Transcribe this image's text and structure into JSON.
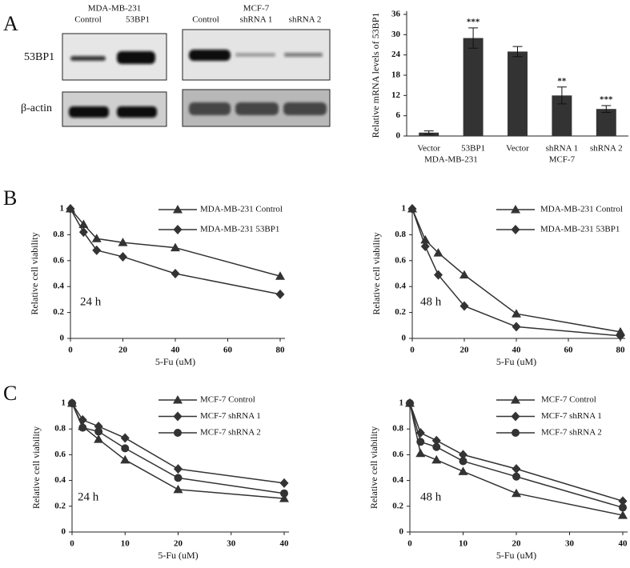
{
  "panel_labels": [
    "A",
    "B",
    "C"
  ],
  "blot": {
    "groups": [
      {
        "name": "MDA-MB-231",
        "lanes": [
          "Control",
          "53BP1"
        ]
      },
      {
        "name": "MCF-7",
        "lanes": [
          "Control",
          "shRNA 1",
          "shRNA  2"
        ]
      }
    ],
    "rows": [
      "53BP1",
      "β-actin"
    ]
  },
  "chart_data": [
    {
      "type": "bar",
      "ylabel": "Relative mRNA levels of 53BP1",
      "categories": [
        "Vector",
        "53BP1",
        "Vector",
        "shRNA 1",
        "shRNA 2"
      ],
      "group_labels": [
        "MDA-MB-231",
        "MCF-7"
      ],
      "values": [
        1,
        29,
        25,
        12,
        8
      ],
      "errors": [
        0.5,
        3,
        1.5,
        2.5,
        1
      ],
      "significance": [
        null,
        "***",
        null,
        "**",
        "***"
      ],
      "color": "#333333",
      "ylim": [
        0,
        36
      ],
      "yticks": [
        0,
        6,
        12,
        18,
        24,
        30,
        36
      ]
    },
    {
      "type": "line",
      "annotation": "24 h",
      "xlabel": "5-Fu (uM)",
      "ylabel": "Relative cell viability",
      "x": [
        0,
        5,
        10,
        20,
        40,
        80
      ],
      "xlim": [
        0,
        80
      ],
      "xticks": [
        0,
        20,
        40,
        60,
        80
      ],
      "ylim": [
        0,
        1
      ],
      "yticks": [
        0,
        0.2,
        0.4,
        0.6,
        0.8,
        1
      ],
      "series": [
        {
          "name": "MDA-MB-231 Control",
          "color": "#333333",
          "marker": "triangle",
          "values": [
            1,
            0.88,
            0.77,
            0.74,
            0.7,
            0.48
          ]
        },
        {
          "name": "MDA-MB-231 53BP1",
          "color": "#333333",
          "marker": "diamond",
          "values": [
            1,
            0.82,
            0.68,
            0.63,
            0.5,
            0.34
          ]
        }
      ]
    },
    {
      "type": "line",
      "annotation": "48 h",
      "xlabel": "5-Fu (uM)",
      "ylabel": "Relative cell viability",
      "x": [
        0,
        5,
        10,
        20,
        40,
        80
      ],
      "xlim": [
        0,
        80
      ],
      "xticks": [
        0,
        20,
        40,
        60,
        80
      ],
      "ylim": [
        0,
        1
      ],
      "yticks": [
        0,
        0.2,
        0.4,
        0.6,
        0.8,
        1
      ],
      "series": [
        {
          "name": "MDA-MB-231 Control",
          "color": "#333333",
          "marker": "triangle",
          "values": [
            1,
            0.76,
            0.66,
            0.49,
            0.19,
            0.05
          ]
        },
        {
          "name": "MDA-MB-231 53BP1",
          "color": "#333333",
          "marker": "diamond",
          "values": [
            1,
            0.71,
            0.49,
            0.25,
            0.09,
            0.02
          ]
        }
      ]
    },
    {
      "type": "line",
      "annotation": "24 h",
      "xlabel": "5-Fu (uM)",
      "ylabel": "Relative cell viability",
      "x": [
        0,
        2,
        5,
        10,
        20,
        40
      ],
      "xlim": [
        0,
        40
      ],
      "xticks": [
        0,
        10,
        20,
        30,
        40
      ],
      "ylim": [
        0,
        1
      ],
      "yticks": [
        0,
        0.2,
        0.4,
        0.6,
        0.8,
        1
      ],
      "series": [
        {
          "name": "MCF-7 Control",
          "color": "#333333",
          "marker": "triangle",
          "values": [
            1,
            0.82,
            0.72,
            0.56,
            0.33,
            0.26
          ]
        },
        {
          "name": "MCF-7 shRNA 1",
          "color": "#333333",
          "marker": "diamond",
          "values": [
            1,
            0.87,
            0.82,
            0.73,
            0.49,
            0.38
          ]
        },
        {
          "name": "MCF-7 shRNA 2",
          "color": "#333333",
          "marker": "circle",
          "values": [
            1,
            0.81,
            0.78,
            0.65,
            0.42,
            0.3
          ]
        }
      ]
    },
    {
      "type": "line",
      "annotation": "48 h",
      "xlabel": "5-Fu (uM)",
      "ylabel": "Relative cell viability",
      "x": [
        0,
        2,
        5,
        10,
        20,
        40
      ],
      "xlim": [
        0,
        40
      ],
      "xticks": [
        0,
        10,
        20,
        30,
        40
      ],
      "ylim": [
        0,
        1
      ],
      "yticks": [
        0,
        0.2,
        0.4,
        0.6,
        0.8,
        1
      ],
      "series": [
        {
          "name": "MCF-7 Control",
          "color": "#333333",
          "marker": "triangle",
          "values": [
            1,
            0.61,
            0.56,
            0.47,
            0.3,
            0.13
          ]
        },
        {
          "name": "MCF-7 shRNA 1",
          "color": "#333333",
          "marker": "diamond",
          "values": [
            1,
            0.77,
            0.71,
            0.6,
            0.49,
            0.24
          ]
        },
        {
          "name": "MCF-7 shRNA 2",
          "color": "#333333",
          "marker": "circle",
          "values": [
            1,
            0.7,
            0.66,
            0.55,
            0.43,
            0.19
          ]
        }
      ]
    }
  ]
}
